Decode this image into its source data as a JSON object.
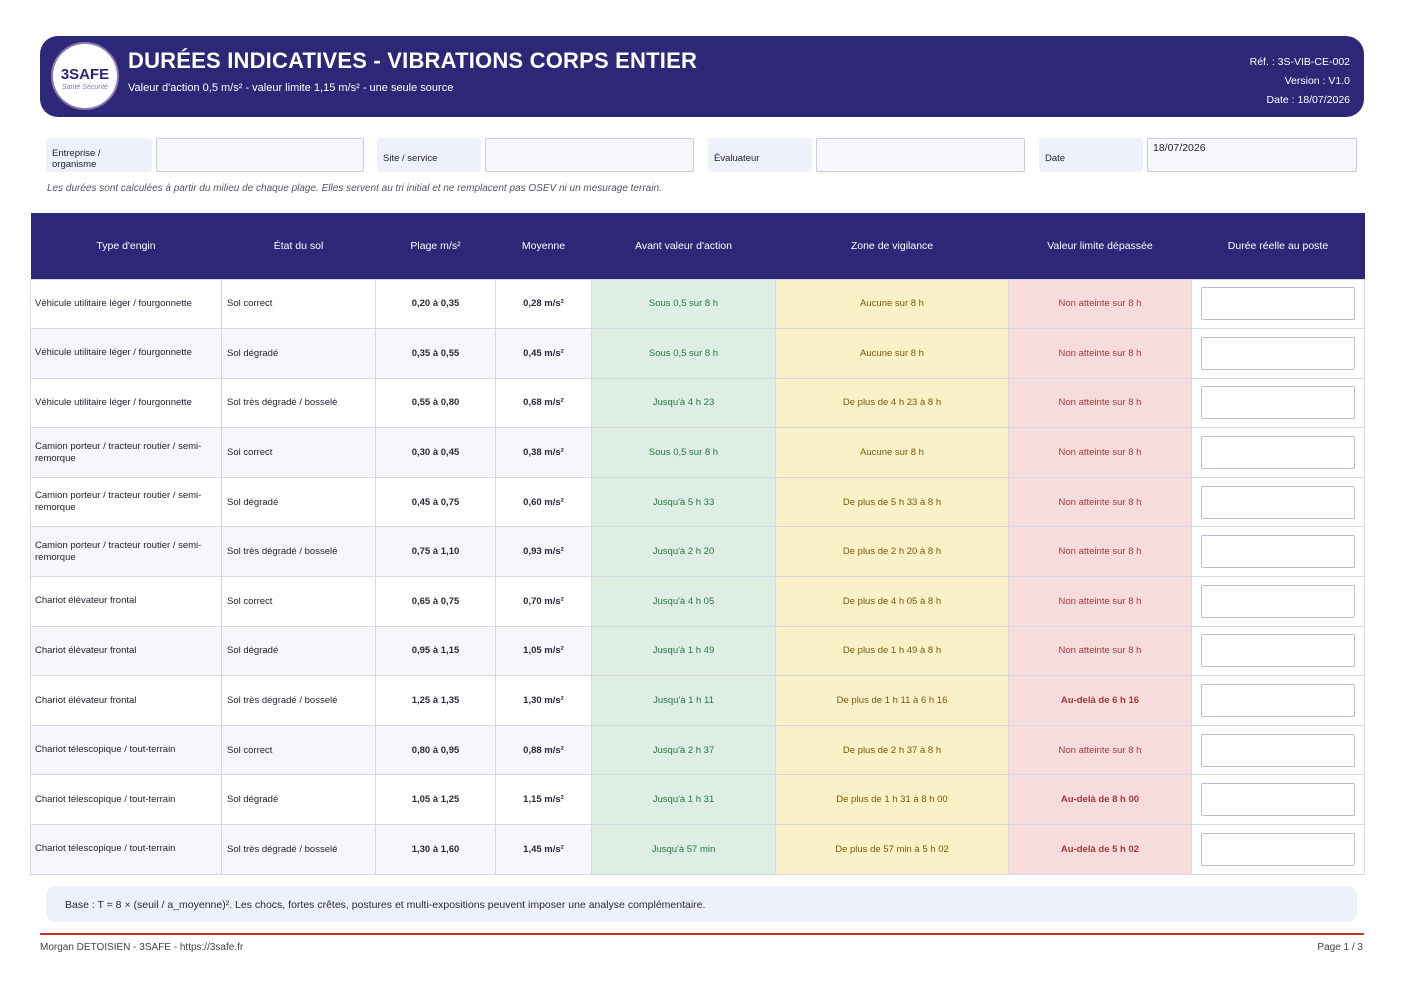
{
  "header": {
    "logo_text": "3SAFE",
    "logo_sub": "Santé Sécurité",
    "title": "DURÉES INDICATIVES - VIBRATIONS CORPS ENTIER",
    "subtitle": "Valeur d'action 0,5 m/s² - valeur limite 1,15 m/s² - une seule source",
    "ref": "Réf. : 3S-VIB-CE-002",
    "version": "Version : V1.0",
    "date": "Date : 18/07/2026"
  },
  "info": {
    "entreprise_label": "Entreprise / organisme",
    "entreprise_value": "",
    "site_label": "Site / service",
    "site_value": "",
    "evaluateur_label": "Évaluateur",
    "evaluateur_value": "",
    "date_label": "Date",
    "date_value": "18/07/2026"
  },
  "note_top": "Les durées sont calculées à partir du milieu de chaque plage. Elles servent au tri initial et ne remplacent pas OSEV ni un mesurage terrain.",
  "table": {
    "headers": [
      "Type d'engin",
      "État du sol",
      "Plage m/s²",
      "Moyenne",
      "Avant valeur d'action",
      "Zone de vigilance",
      "Valeur limite dépassée",
      "Durée réelle au poste"
    ],
    "rows": [
      {
        "engin": "Véhicule utilitaire léger / fourgonnette",
        "sol": "Sol correct",
        "plage": "0,20 à 0,35",
        "moyenne": "0,28 m/s²",
        "action": "Sous 0,5 sur 8 h",
        "vigilance": "Aucune sur 8 h",
        "limite": "Non atteinte sur 8 h",
        "over": false
      },
      {
        "engin": "Véhicule utilitaire léger / fourgonnette",
        "sol": "Sol dégradé",
        "plage": "0,35 à 0,55",
        "moyenne": "0,45 m/s²",
        "action": "Sous 0,5 sur 8 h",
        "vigilance": "Aucune sur 8 h",
        "limite": "Non atteinte sur 8 h",
        "over": false
      },
      {
        "engin": "Véhicule utilitaire léger / fourgonnette",
        "sol": "Sol très dégradé / bosselé",
        "plage": "0,55 à 0,80",
        "moyenne": "0,68 m/s²",
        "action": "Jusqu'à 4 h 23",
        "vigilance": "De plus de 4 h 23 à 8 h",
        "limite": "Non atteinte sur 8 h",
        "over": false
      },
      {
        "engin": "Camion porteur / tracteur routier / semi-remorque",
        "sol": "Sol correct",
        "plage": "0,30 à 0,45",
        "moyenne": "0,38 m/s²",
        "action": "Sous 0,5 sur 8 h",
        "vigilance": "Aucune sur 8 h",
        "limite": "Non atteinte sur 8 h",
        "over": false
      },
      {
        "engin": "Camion porteur / tracteur routier / semi-remorque",
        "sol": "Sol dégradé",
        "plage": "0,45 à 0,75",
        "moyenne": "0,60 m/s²",
        "action": "Jusqu'à 5 h 33",
        "vigilance": "De plus de 5 h 33 à 8 h",
        "limite": "Non atteinte sur 8 h",
        "over": false
      },
      {
        "engin": "Camion porteur / tracteur routier / semi-remorque",
        "sol": "Sol très dégradé / bosselé",
        "plage": "0,75 à 1,10",
        "moyenne": "0,93 m/s²",
        "action": "Jusqu'à 2 h 20",
        "vigilance": "De plus de 2 h 20 à 8 h",
        "limite": "Non atteinte sur 8 h",
        "over": false
      },
      {
        "engin": "Chariot élévateur frontal",
        "sol": "Sol correct",
        "plage": "0,65 à 0,75",
        "moyenne": "0,70 m/s²",
        "action": "Jusqu'à 4 h 05",
        "vigilance": "De plus de 4 h 05 à 8 h",
        "limite": "Non atteinte sur 8 h",
        "over": false
      },
      {
        "engin": "Chariot élévateur frontal",
        "sol": "Sol dégradé",
        "plage": "0,95 à 1,15",
        "moyenne": "1,05 m/s²",
        "action": "Jusqu'à 1 h 49",
        "vigilance": "De plus de 1 h 49 à 8 h",
        "limite": "Non atteinte sur 8 h",
        "over": false
      },
      {
        "engin": "Chariot élévateur frontal",
        "sol": "Sol très dégradé / bosselé",
        "plage": "1,25 à 1,35",
        "moyenne": "1,30 m/s²",
        "action": "Jusqu'à 1 h 11",
        "vigilance": "De plus de 1 h 11 à 6 h 16",
        "limite": "Au-delà de 6 h 16",
        "over": true
      },
      {
        "engin": "Chariot télescopique / tout-terrain",
        "sol": "Sol correct",
        "plage": "0,80 à 0,95",
        "moyenne": "0,88 m/s²",
        "action": "Jusqu'à 2 h 37",
        "vigilance": "De plus de 2 h 37 à 8 h",
        "limite": "Non atteinte sur 8 h",
        "over": false
      },
      {
        "engin": "Chariot télescopique / tout-terrain",
        "sol": "Sol dégradé",
        "plage": "1,05 à 1,25",
        "moyenne": "1,15 m/s²",
        "action": "Jusqu'à 1 h 31",
        "vigilance": "De plus de 1 h 31 à 8 h 00",
        "limite": "Au-delà de 8 h 00",
        "over": true
      },
      {
        "engin": "Chariot télescopique / tout-terrain",
        "sol": "Sol très dégradé / bosselé",
        "plage": "1,30 à 1,60",
        "moyenne": "1,45 m/s²",
        "action": "Jusqu'à 57 min",
        "vigilance": "De plus de 57 min à 5 h 02",
        "limite": "Au-delà de 5 h 02",
        "over": true
      }
    ]
  },
  "base_note": "Base : T = 8 × (seuil / a_moyenne)². Les chocs, fortes crêtes, postures et multi-expositions peuvent imposer une analyse complémentaire.",
  "footer": {
    "left": "Morgan DETOISIEN - 3SAFE - https://3safe.fr",
    "right": "Page 1 / 3"
  },
  "colors": {
    "brand": "#2e2677",
    "action_bg": "#dfeee4",
    "vigilance_bg": "#fbf1c9",
    "limite_bg": "#f6dcdc",
    "footer_line": "#c0392b"
  }
}
